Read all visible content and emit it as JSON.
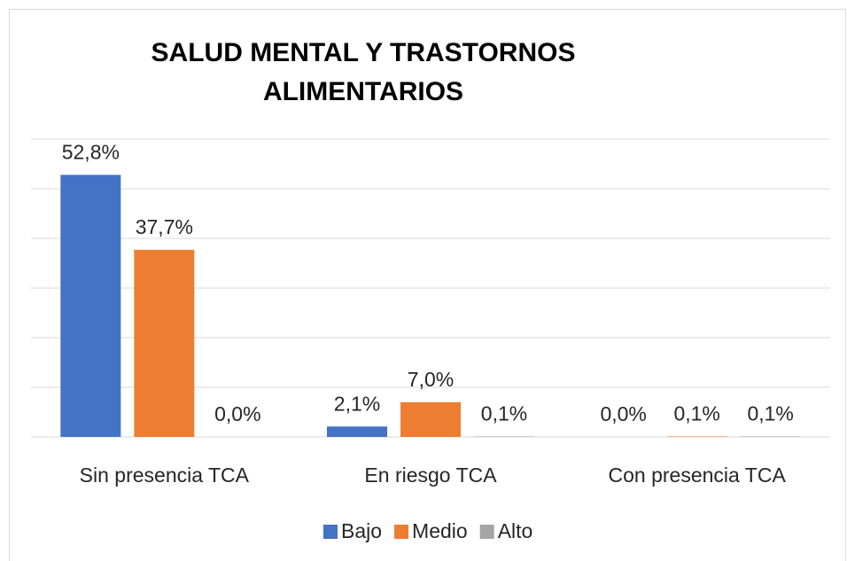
{
  "chart_data": {
    "type": "bar",
    "title": "SALUD MENTAL Y TRASTORNOS ALIMENTARIOS",
    "categories": [
      "Sin presencia TCA",
      "En riesgo TCA",
      "Con presencia TCA"
    ],
    "series": [
      {
        "name": "Bajo",
        "color": "#4472c4",
        "values": [
          52.8,
          2.1,
          0.0
        ],
        "value_labels": [
          "52,8%",
          "2,1%",
          "0,0%"
        ]
      },
      {
        "name": "Medio",
        "color": "#ed7d31",
        "values": [
          37.7,
          7.0,
          0.1
        ],
        "value_labels": [
          "37,7%",
          "7,0%",
          "0,1%"
        ]
      },
      {
        "name": "Alto",
        "color": "#a5a5a5",
        "values": [
          0.0,
          0.1,
          0.1
        ],
        "value_labels": [
          "0,0%",
          "0,1%",
          "0,1%"
        ]
      }
    ],
    "ylim": [
      0,
      60
    ],
    "yticks": [
      0,
      10,
      20,
      30,
      40,
      50,
      60
    ],
    "grid": true,
    "legend": "bottom"
  }
}
